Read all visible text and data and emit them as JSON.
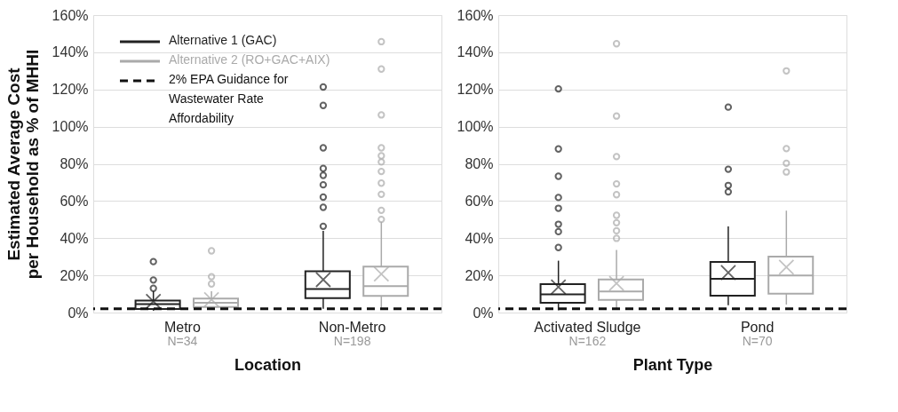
{
  "chart_data": [
    {
      "type": "box",
      "ylabel": "Estimated Average Cost per Household as % of MHHI",
      "xlabel": "Location",
      "categories": [
        "Metro",
        "Non-Metro"
      ],
      "series": [
        {
          "name": "Alternative 1 (GAC)",
          "color": "#222222",
          "boxes": [
            {
              "low": 1,
              "q1": 1.9,
              "median": 4.5,
              "q3": 6.4,
              "high": 11.5,
              "mean": 6,
              "outliers": [
                13,
                17.5,
                27.4
              ]
            },
            {
              "low": 2,
              "q1": 7.8,
              "median": 12.7,
              "q3": 22.2,
              "high": 43.9,
              "mean": 17.7,
              "outliers": [
                46.4,
                56.6,
                62.1,
                68.7,
                73.8,
                77.5,
                88.6,
                111.4,
                121.3
              ]
            }
          ]
        },
        {
          "name": "Alternative 2 (RO+GAC+AIX)",
          "color": "#aaaaaa",
          "boxes": [
            {
              "low": 2,
              "q1": 3,
              "median": 5.2,
              "q3": 7.5,
              "high": 11.5,
              "mean": 7,
              "outliers": [
                15.4,
                19.3,
                33.2
              ]
            },
            {
              "low": 2.5,
              "q1": 9,
              "median": 14.2,
              "q3": 24.7,
              "high": 48.7,
              "mean": 20.7,
              "outliers": [
                50.1,
                55,
                63.6,
                69.6,
                75.9,
                81,
                84.3,
                88.6,
                106.3,
                131,
                145.7
              ]
            }
          ]
        }
      ],
      "ylim": [
        0,
        160
      ],
      "yticks": [
        {
          "value": 0,
          "label": "0%"
        },
        {
          "value": 20,
          "label": "20%"
        },
        {
          "value": 40,
          "label": "40%"
        },
        {
          "value": 60,
          "label": "60%"
        },
        {
          "value": 80,
          "label": "80%"
        },
        {
          "value": 100,
          "label": "100%"
        },
        {
          "value": 120,
          "label": "120%"
        },
        {
          "value": 140,
          "label": "140%"
        },
        {
          "value": 160,
          "label": "160%"
        }
      ],
      "ref_lines": [
        {
          "axis": "y",
          "value": 2,
          "label": "2% EPA Guidance for Wastewater Rate Affordability",
          "color": "#111111",
          "line_style": "dashed"
        }
      ],
      "annotations": [
        "N=34",
        "N=198"
      ],
      "grid": "y",
      "legend": "top left",
      "marker": "circle"
    },
    {
      "type": "box",
      "xlabel": "Plant Type",
      "categories": [
        "Activated Sludge",
        "Pond"
      ],
      "series": [
        {
          "color": "#222222",
          "boxes": [
            {
              "low": 1.2,
              "q1": 5.3,
              "median": 9.8,
              "q3": 15.3,
              "high": 27.9,
              "mean": 13.8,
              "outliers": [
                35,
                43.5,
                47.5,
                56.1,
                61.9,
                73.3,
                88,
                120.3
              ]
            },
            {
              "low": 3.9,
              "q1": 9.1,
              "median": 18.1,
              "q3": 27.2,
              "high": 46.3,
              "mean": 21.5,
              "outliers": [
                64.9,
                68.4,
                77.1,
                110.5
              ]
            }
          ]
        },
        {
          "color": "#aaaaaa",
          "boxes": [
            {
              "low": 1.6,
              "q1": 6.8,
              "median": 11.3,
              "q3": 17.8,
              "high": 33.7,
              "mean": 15.7,
              "outliers": [
                39.9,
                44,
                48.3,
                52.3,
                63.4,
                69.2,
                83.9,
                105.7,
                144.6
              ]
            },
            {
              "low": 4.3,
              "q1": 10.1,
              "median": 20,
              "q3": 30.1,
              "high": 54.8,
              "mean": 24.4,
              "outliers": [
                75.6,
                80.3,
                88.2,
                130
              ]
            }
          ]
        }
      ],
      "ylim": [
        0,
        160
      ],
      "yticks": [
        {
          "value": 0,
          "label": "0%"
        },
        {
          "value": 20,
          "label": "20%"
        },
        {
          "value": 40,
          "label": "40%"
        },
        {
          "value": 60,
          "label": "60%"
        },
        {
          "value": 80,
          "label": "80%"
        },
        {
          "value": 100,
          "label": "100%"
        },
        {
          "value": 120,
          "label": "120%"
        },
        {
          "value": 140,
          "label": "140%"
        },
        {
          "value": 160,
          "label": "160%"
        }
      ],
      "ref_lines": [
        {
          "axis": "y",
          "value": 2,
          "color": "#111111",
          "line_style": "dashed"
        }
      ],
      "annotations": [
        "N=162",
        "N=70"
      ],
      "grid": "y",
      "marker": "circle"
    }
  ]
}
